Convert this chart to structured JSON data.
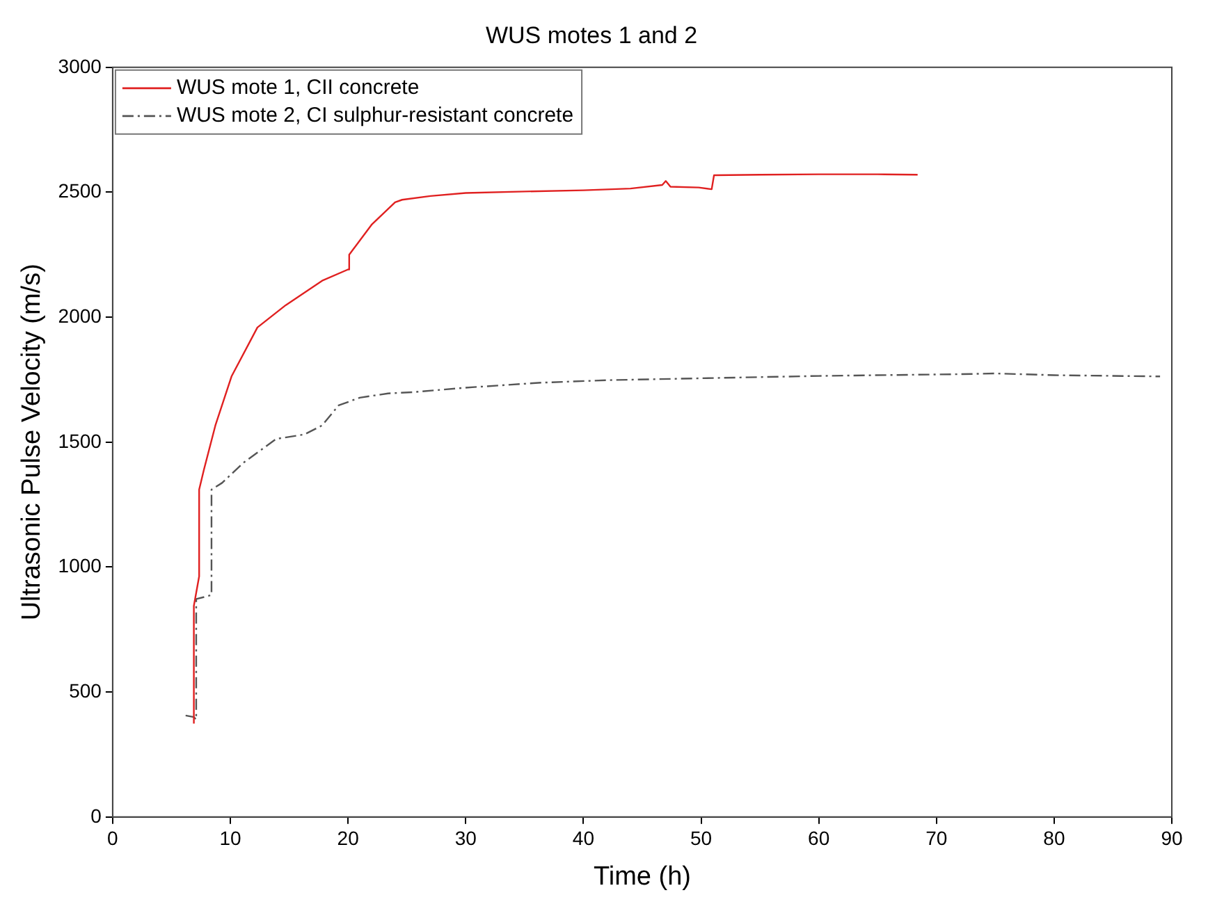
{
  "chart_data": {
    "type": "line",
    "title": "WUS motes 1 and 2",
    "xlabel": "Time (h)",
    "ylabel": "Ultrasonic Pulse Velocity (m/s)",
    "xlim": [
      0,
      90
    ],
    "xticks": [
      0,
      10,
      20,
      30,
      40,
      50,
      60,
      70,
      80,
      90
    ],
    "ylim": [
      0,
      3000
    ],
    "yticks": [
      0,
      500,
      1000,
      1500,
      2000,
      2500,
      3000
    ],
    "legend": "top left",
    "marker": "none",
    "series": [
      {
        "name": "WUS mote 1, CII concrete",
        "color": "#e02020",
        "line_style": "solid",
        "x": [
          6.9,
          6.9,
          7.35,
          7.35,
          7.75,
          8.73,
          10.1,
          12.3,
          14.7,
          17.8,
          20.0,
          20.1,
          22,
          24,
          24.6,
          27,
          30,
          35,
          40,
          44,
          46.7,
          47,
          47.4,
          49.8,
          50.9,
          51.1,
          55,
          60,
          65,
          68.4
        ],
        "values": [
          374,
          845,
          963,
          1310,
          1389,
          1567,
          1763,
          1959,
          2048,
          2146,
          2191,
          2250,
          2370,
          2460,
          2470,
          2485,
          2497,
          2503,
          2508,
          2515,
          2529,
          2545,
          2522,
          2519,
          2512,
          2568,
          2570,
          2572,
          2572,
          2570
        ]
      },
      {
        "name": "WUS mote 2, CI sulphur-resistant concrete",
        "color": "#555555",
        "line_style": "dashdot",
        "x": [
          6.2,
          6.9,
          7.1,
          7.1,
          8.4,
          8.4,
          9.3,
          11.1,
          13.9,
          16.3,
          17.8,
          19.2,
          21,
          23.4,
          25.5,
          30,
          36.4,
          42,
          48.3,
          60,
          72,
          75,
          80,
          89
        ],
        "values": [
          406,
          400,
          390,
          872,
          888,
          1310,
          1337,
          1417,
          1513,
          1531,
          1567,
          1647,
          1678,
          1695,
          1700,
          1718,
          1738,
          1748,
          1754,
          1765,
          1772,
          1775,
          1768,
          1763
        ]
      }
    ]
  }
}
